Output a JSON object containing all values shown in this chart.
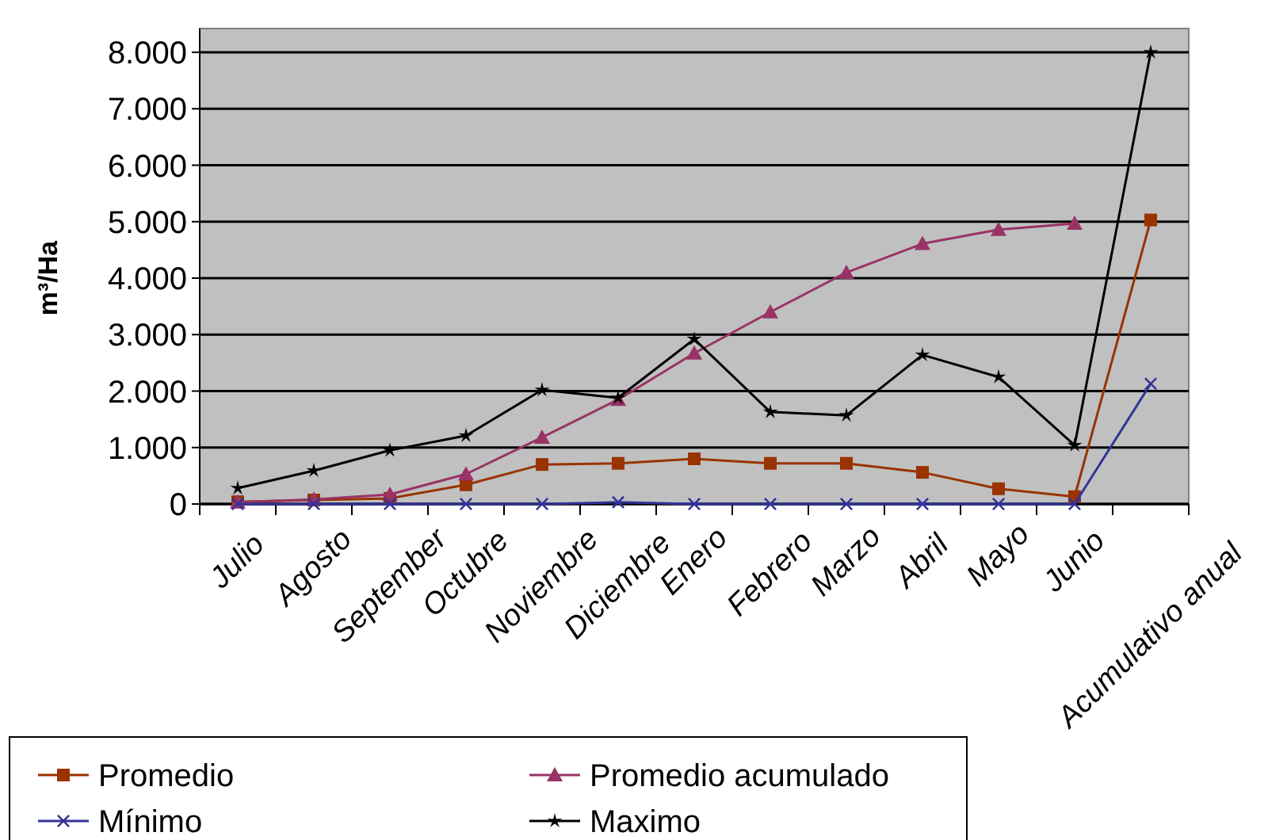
{
  "chart_data": {
    "type": "line",
    "ylabel": "m³/Ha",
    "categories": [
      "Julio",
      "Agosto",
      "September",
      "Octubre",
      "Noviembre",
      "Diciembre",
      "Enero",
      "Febrero",
      "Marzo",
      "Abril",
      "Mayo",
      "Junio",
      "Acumulativo anual"
    ],
    "ylim": [
      0,
      8000
    ],
    "yticks": [
      {
        "value": 0,
        "label": "0"
      },
      {
        "value": 1000,
        "label": "1.000"
      },
      {
        "value": 2000,
        "label": "2.000"
      },
      {
        "value": 3000,
        "label": "3.000"
      },
      {
        "value": 4000,
        "label": "4.000"
      },
      {
        "value": 5000,
        "label": "5.000"
      },
      {
        "value": 6000,
        "label": "6.000"
      },
      {
        "value": 7000,
        "label": "7.000"
      },
      {
        "value": 8000,
        "label": "8.000"
      }
    ],
    "grid": "y",
    "legend": "bottom left",
    "series": [
      {
        "name": "Promedio",
        "color": "#993300",
        "marker": "square",
        "values": [
          40,
          70,
          100,
          340,
          700,
          720,
          800,
          720,
          720,
          560,
          270,
          130,
          5030
        ]
      },
      {
        "name": "Promedio acumulado",
        "color": "#993366",
        "marker": "triangle",
        "values": [
          30,
          80,
          170,
          530,
          1180,
          1850,
          2670,
          3400,
          4100,
          4610,
          4860,
          4970,
          null
        ]
      },
      {
        "name": "Mínimo",
        "color": "#333399",
        "marker": "cross",
        "values": [
          0,
          0,
          0,
          0,
          0,
          30,
          0,
          0,
          0,
          0,
          0,
          0,
          2130
        ]
      },
      {
        "name": "Maximo",
        "color": "#000000",
        "marker": "star",
        "values": [
          280,
          590,
          950,
          1210,
          2020,
          1880,
          2920,
          1630,
          1570,
          2640,
          2250,
          1040,
          8000
        ]
      }
    ]
  }
}
